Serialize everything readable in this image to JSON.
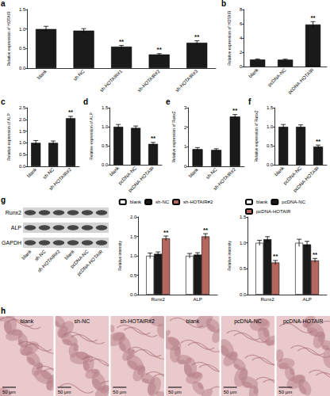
{
  "chart_data": [
    {
      "type": "bar",
      "panel": "a",
      "ylabel": "Relative expression of HOTAIR",
      "categories": [
        "blank",
        "sh-NC",
        "sh-HOTAIR#1",
        "sh-HOTAIR#2",
        "sh-HOTAIR#3"
      ],
      "values": [
        1.0,
        0.96,
        0.55,
        0.35,
        0.65
      ],
      "errors": [
        0.07,
        0.05,
        0.03,
        0.02,
        0.05
      ],
      "significance": [
        null,
        null,
        "**",
        "**",
        "**"
      ],
      "color": "#1a1a1a",
      "ylim": [
        0,
        1.5
      ],
      "yticks": [
        {
          "value": 0,
          "label": "0.0"
        },
        0.5,
        {
          "value": 1,
          "label": "1.0"
        },
        1.5
      ]
    },
    {
      "type": "bar",
      "panel": "b",
      "ylabel": "Relative expression of HOTAIR",
      "categories": [
        "blank",
        "pcDNA-NC",
        "pcDNA-HOTAIR"
      ],
      "values": [
        1.0,
        0.98,
        5.9
      ],
      "errors": [
        0.08,
        0.07,
        0.4
      ],
      "significance": [
        null,
        null,
        "**"
      ],
      "color": "#1a1a1a",
      "ylim": [
        0,
        8
      ],
      "yticks": [
        0,
        2,
        4,
        6,
        8
      ]
    },
    {
      "type": "bar",
      "panel": "c",
      "ylabel": "Relative expression of ALP",
      "categories": [
        "blank",
        "sh-NC",
        "sh-HOTAIR#2"
      ],
      "values": [
        1.0,
        1.0,
        2.05
      ],
      "errors": [
        0.1,
        0.08,
        0.08
      ],
      "significance": [
        null,
        null,
        "**"
      ],
      "color": "#1a1a1a",
      "ylim": [
        0,
        2.5
      ],
      "yticks": [
        {
          "value": 0,
          "label": "0.0"
        },
        0.5,
        {
          "value": 1,
          "label": "1.0"
        },
        1.5,
        {
          "value": 2,
          "label": "2.0"
        },
        2.5
      ]
    },
    {
      "type": "bar",
      "panel": "d",
      "ylabel": "Relative expression of ALP",
      "categories": [
        "blank",
        "pcDNA-NC",
        "pcDNA-HOTAIR"
      ],
      "values": [
        1.0,
        0.97,
        0.55
      ],
      "errors": [
        0.06,
        0.05,
        0.04
      ],
      "significance": [
        null,
        null,
        "**"
      ],
      "color": "#1a1a1a",
      "ylim": [
        0,
        1.5
      ],
      "yticks": [
        {
          "value": 0,
          "label": "0.0"
        },
        0.5,
        {
          "value": 1,
          "label": "1.0"
        },
        1.5
      ]
    },
    {
      "type": "bar",
      "panel": "e",
      "ylabel": "Relative expression of Runx2",
      "categories": [
        "blank",
        "sh-NC",
        "sh-HOTAIR#2"
      ],
      "values": [
        0.88,
        0.84,
        2.55
      ],
      "errors": [
        0.08,
        0.06,
        0.1
      ],
      "significance": [
        null,
        null,
        "**"
      ],
      "color": "#1a1a1a",
      "ylim": [
        0,
        3
      ],
      "yticks": [
        0,
        1,
        2,
        3
      ]
    },
    {
      "type": "bar",
      "panel": "f",
      "ylabel": "Relative expression of Runx2",
      "categories": [
        "blank",
        "pcDNA-NC",
        "pcDNA-HOTAIR"
      ],
      "values": [
        1.0,
        1.0,
        0.48
      ],
      "errors": [
        0.06,
        0.05,
        0.04
      ],
      "significance": [
        null,
        null,
        "**"
      ],
      "color": "#1a1a1a",
      "ylim": [
        0,
        1.5
      ],
      "yticks": [
        {
          "value": 0,
          "label": "0.0"
        },
        0.5,
        {
          "value": 1,
          "label": "1.0"
        },
        1.5
      ]
    },
    {
      "type": "bar",
      "ylabel": "Relative intensity",
      "categories": [
        "Runx2",
        "ALP"
      ],
      "legend": "top",
      "series": [
        {
          "name": "blank",
          "color": "#ffffff",
          "values": [
            1.0,
            1.0
          ],
          "errors": [
            0.07,
            0.06
          ]
        },
        {
          "name": "sh-NC",
          "color": "#1a1a1a",
          "values": [
            1.05,
            1.03
          ],
          "errors": [
            0.05,
            0.05
          ]
        },
        {
          "name": "sh-HOTAIR#2",
          "color": "#b5665e",
          "values": [
            1.45,
            1.5
          ],
          "errors": [
            0.06,
            0.07
          ],
          "significance": [
            "**",
            "**"
          ]
        }
      ],
      "ylim": [
        0,
        2
      ],
      "yticks": [
        {
          "value": 0,
          "label": "0.0"
        },
        0.5,
        {
          "value": 1,
          "label": "1.0"
        },
        1.5,
        {
          "value": 2,
          "label": "2.0"
        }
      ]
    },
    {
      "type": "bar",
      "ylabel": "Relative intensity",
      "categories": [
        "Runx2",
        "ALP"
      ],
      "legend": "top",
      "series": [
        {
          "name": "blank",
          "color": "#ffffff",
          "values": [
            1.0,
            1.0
          ],
          "errors": [
            0.05,
            0.07
          ]
        },
        {
          "name": "pcDNA-NC",
          "color": "#1a1a1a",
          "values": [
            1.07,
            0.97
          ],
          "errors": [
            0.05,
            0.06
          ]
        },
        {
          "name": "pcDNA-HOTAIR",
          "color": "#b5665e",
          "values": [
            0.62,
            0.66
          ],
          "errors": [
            0.04,
            0.04
          ],
          "significance": [
            "**",
            "**"
          ]
        }
      ],
      "ylim": [
        0,
        1.5
      ],
      "yticks": [
        {
          "value": 0,
          "label": "0.0"
        },
        0.5,
        {
          "value": 1,
          "label": "1.0"
        },
        1.5
      ]
    }
  ],
  "blot": {
    "panel": "g",
    "rows": [
      "Runx2",
      "ALP",
      "GAPDH"
    ],
    "lanes": [
      "blank",
      "sh-NC",
      "sh-HOTAIR#2",
      "blank",
      "pcDNA-NC",
      "pcDNA-HOTAIR"
    ]
  },
  "images": {
    "panel": "h",
    "labels": [
      "blank",
      "sh-NC",
      "sh-HOTAIR#2",
      "blank",
      "pcDNA-NC",
      "pcDNA-HOTAIR"
    ],
    "scale_bar": "50 μm"
  }
}
